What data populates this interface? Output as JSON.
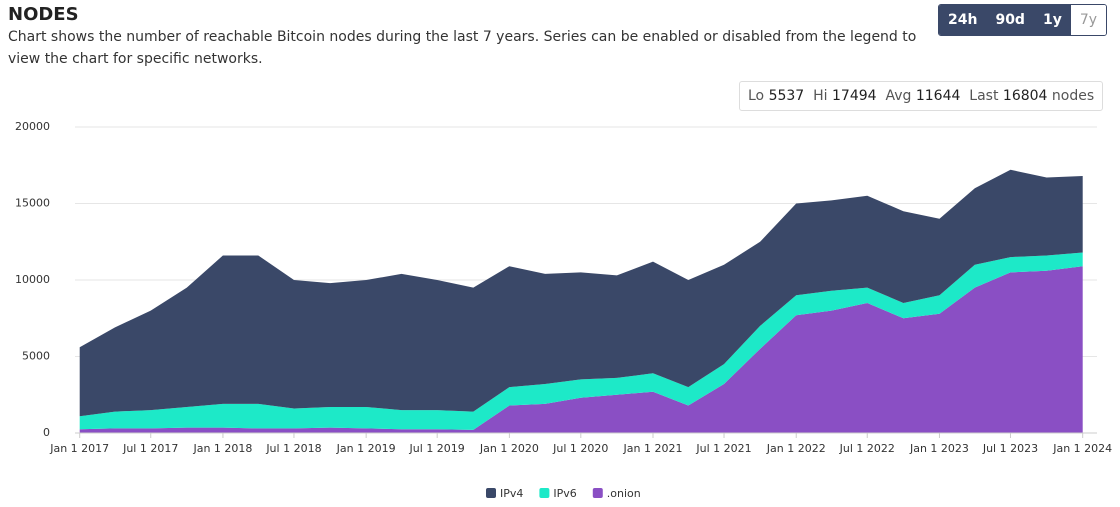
{
  "header": {
    "title": "NODES",
    "description": "Chart shows the number of reachable Bitcoin nodes during the last 7 years. Series can be enabled or disabled from the legend to view the chart for specific networks.",
    "ranges": [
      "24h",
      "90d",
      "1y",
      "7y"
    ],
    "active_range": "7y"
  },
  "stats": {
    "lo_label": "Lo",
    "lo": 5537,
    "hi_label": "Hi",
    "hi": 17494,
    "avg_label": "Avg",
    "avg": 11644,
    "last_label": "Last",
    "last": 16804,
    "unit": "nodes"
  },
  "chart_data": {
    "type": "area",
    "stacked": true,
    "grid": true,
    "legend": "bottom",
    "x": [
      "2017-01-01",
      "2017-04-01",
      "2017-07-01",
      "2017-10-01",
      "2018-01-01",
      "2018-04-01",
      "2018-07-01",
      "2018-10-01",
      "2019-01-01",
      "2019-04-01",
      "2019-07-01",
      "2019-10-01",
      "2020-01-01",
      "2020-04-01",
      "2020-07-01",
      "2020-10-01",
      "2021-01-01",
      "2021-04-01",
      "2021-07-01",
      "2021-10-01",
      "2022-01-01",
      "2022-04-01",
      "2022-07-01",
      "2022-10-01",
      "2023-01-01",
      "2023-04-01",
      "2023-07-01",
      "2023-10-01",
      "2024-01-01"
    ],
    "xlim": [
      "2016-12-20",
      "2024-01-12"
    ],
    "xticks": [
      {
        "value": "2017-01-01",
        "label": "Jan 1 2017"
      },
      {
        "value": "2017-07-01",
        "label": "Jul 1 2017"
      },
      {
        "value": "2018-01-01",
        "label": "Jan 1 2018"
      },
      {
        "value": "2018-07-01",
        "label": "Jul 1 2018"
      },
      {
        "value": "2019-01-01",
        "label": "Jan 1 2019"
      },
      {
        "value": "2019-07-01",
        "label": "Jul 1 2019"
      },
      {
        "value": "2020-01-01",
        "label": "Jan 1 2020"
      },
      {
        "value": "2020-07-01",
        "label": "Jul 1 2020"
      },
      {
        "value": "2021-01-01",
        "label": "Jan 1 2021"
      },
      {
        "value": "2021-07-01",
        "label": "Jul 1 2021"
      },
      {
        "value": "2022-01-01",
        "label": "Jan 1 2022"
      },
      {
        "value": "2022-07-01",
        "label": "Jul 1 2022"
      },
      {
        "value": "2023-01-01",
        "label": "Jan 1 2023"
      },
      {
        "value": "2023-07-01",
        "label": "Jul 1 2023"
      },
      {
        "value": "2024-01-01",
        "label": "Jan 1 2024"
      }
    ],
    "ylim": [
      0,
      20000
    ],
    "yticks": [
      0,
      5000,
      10000,
      15000,
      20000
    ],
    "series": [
      {
        "name": "IPv4",
        "color": "#3a4868",
        "values": [
          4500,
          5500,
          6500,
          7800,
          9700,
          9700,
          8400,
          8100,
          8300,
          8900,
          8500,
          8100,
          7900,
          7200,
          7000,
          6700,
          7300,
          7000,
          6500,
          5500,
          6000,
          5900,
          6000,
          6000,
          5000,
          5000,
          5700,
          5100,
          5000
        ]
      },
      {
        "name": "IPv6",
        "color": "#1de9c8",
        "values": [
          850,
          1100,
          1200,
          1350,
          1550,
          1600,
          1300,
          1350,
          1400,
          1250,
          1250,
          1200,
          1200,
          1300,
          1200,
          1100,
          1200,
          1200,
          1300,
          1500,
          1300,
          1300,
          1000,
          1000,
          1200,
          1500,
          1000,
          1000,
          900
        ]
      },
      {
        "name": ".onion",
        "color": "#8a4fc4",
        "values": [
          250,
          300,
          300,
          350,
          350,
          300,
          300,
          350,
          300,
          250,
          250,
          200,
          1800,
          1900,
          2300,
          2500,
          2700,
          1800,
          3200,
          5500,
          7700,
          8000,
          8500,
          7500,
          7800,
          9500,
          10500,
          10600,
          10900
        ]
      }
    ]
  }
}
